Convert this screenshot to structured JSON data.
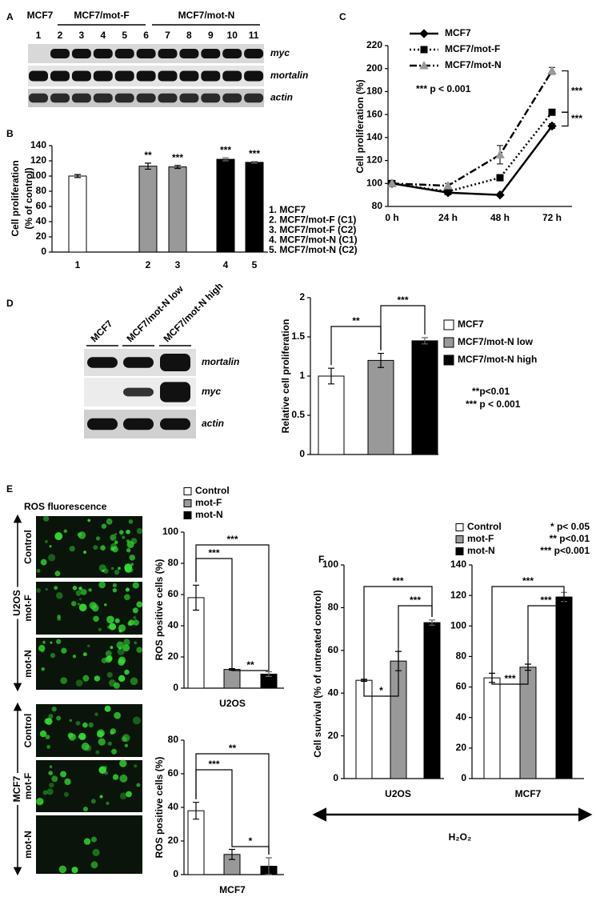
{
  "panel_labels": [
    "A",
    "B",
    "C",
    "D",
    "E",
    "F"
  ],
  "blot_A": {
    "groups": [
      "MCF7",
      "MCF7/mot-F",
      "MCF7/mot-N"
    ],
    "lanes": [
      "1",
      "2",
      "3",
      "4",
      "5",
      "6",
      "7",
      "8",
      "9",
      "10",
      "11"
    ],
    "bands": [
      "myc",
      "mortalin",
      "actin"
    ]
  },
  "blot_D": {
    "lanes": [
      "MCF7",
      "MCF7/mot-N low",
      "MCF7/mot-N high"
    ],
    "bands": [
      "mortalin",
      "myc",
      "actin"
    ]
  },
  "images_E": {
    "title": "ROS fluorescence",
    "cell_lines": [
      "U2OS",
      "MCF7"
    ],
    "conditions": [
      "Control",
      "mot-F",
      "mot-N"
    ]
  },
  "chart_data": [
    {
      "type": "bar",
      "ylabel": [
        "Cell proliferation",
        "(% of control)"
      ],
      "categories": [
        "1",
        "2",
        "3",
        "4",
        "5"
      ],
      "values": [
        100,
        113,
        112,
        122,
        118
      ],
      "errors": [
        2,
        4,
        2,
        2,
        1
      ],
      "colors": [
        "#ffffff",
        "#999999",
        "#999999",
        "#000000",
        "#000000"
      ],
      "ylim": [
        0,
        140
      ],
      "yticks": [
        0,
        20,
        40,
        60,
        80,
        100,
        120,
        140
      ],
      "significance": [
        null,
        "**",
        "***",
        "***",
        "***"
      ],
      "notes": [
        "1. MCF7",
        "2. MCF7/mot-F (C1)",
        "3. MCF7/mot-F (C2)",
        "4. MCF7/mot-N (C1)",
        "5. MCF7/mot-N (C2)"
      ]
    },
    {
      "type": "line",
      "ylabel": "Cell proliferation (%)",
      "categories": [
        "0 h",
        "24 h",
        "48 h",
        "72 h"
      ],
      "series": [
        {
          "name": "MCF7",
          "color": "#000000",
          "line_style": "solid",
          "marker": "diamond",
          "values": [
            100,
            92,
            90,
            150
          ],
          "errors": [
            1,
            1,
            1,
            2
          ]
        },
        {
          "name": "MCF7/mot-F",
          "color": "#000000",
          "line_style": "dotted",
          "marker": "square",
          "values": [
            100,
            93,
            105,
            162
          ],
          "errors": [
            1,
            1,
            2,
            2
          ]
        },
        {
          "name": "MCF7/mot-N",
          "color": "#000000",
          "marker_color": "#999999",
          "line_style": "dashdot",
          "marker": "triangle",
          "values": [
            100,
            98,
            125,
            198
          ],
          "errors": [
            1,
            2,
            8,
            3
          ]
        }
      ],
      "ylim": [
        80,
        220
      ],
      "yticks": [
        80,
        100,
        120,
        140,
        160,
        180,
        200,
        220
      ],
      "note": "*** p < 0.001",
      "significance": [
        "***",
        "***"
      ]
    },
    {
      "type": "bar",
      "ylabel": "Relative cell proliferation",
      "categories": [
        "MCF7",
        "MCF7/mot-N low",
        "MCF7/mot-N high"
      ],
      "values": [
        1,
        1.2,
        1.45
      ],
      "errors": [
        0.1,
        0.09,
        0.04
      ],
      "colors": [
        "#ffffff",
        "#999999",
        "#000000"
      ],
      "ylim": [
        0,
        2
      ],
      "yticks": [
        0,
        0.5,
        1,
        1.5,
        2
      ],
      "significance": [
        "**",
        "***"
      ],
      "notes": [
        "**p<0.01",
        "*** p < 0.001"
      ]
    },
    {
      "type": "bar",
      "ylabel": "ROS positive cells (%)",
      "xlabel": "U2OS",
      "categories": [
        "Control",
        "mot-F",
        "mot-N"
      ],
      "values": [
        58,
        12,
        9
      ],
      "errors": [
        8,
        0.5,
        1.5
      ],
      "colors": [
        "#ffffff",
        "#999999",
        "#000000"
      ],
      "ylim": [
        0,
        100
      ],
      "yticks": [
        0,
        20,
        40,
        60,
        80,
        100
      ],
      "significance": [
        "***",
        "***",
        "**"
      ]
    },
    {
      "type": "bar",
      "ylabel": "ROS positive cells (%)",
      "xlabel": "MCF7",
      "values": [
        38,
        12,
        5
      ],
      "errors": [
        5,
        3,
        5
      ],
      "colors": [
        "#ffffff",
        "#999999",
        "#000000"
      ],
      "ylim": [
        0,
        80
      ],
      "yticks": [
        0,
        20,
        40,
        60,
        80
      ],
      "significance": [
        "***",
        "**",
        "*"
      ]
    },
    {
      "type": "bar",
      "ylabel": "Cell survival (% of untreated control)",
      "xlabel": "U2OS",
      "categories": [
        "Control",
        "mot-F",
        "mot-N"
      ],
      "values": [
        46,
        55,
        73
      ],
      "errors": [
        0.5,
        4.5,
        1.2
      ],
      "colors": [
        "#ffffff",
        "#999999",
        "#000000"
      ],
      "ylim": [
        0,
        100
      ],
      "yticks": [
        0,
        20,
        40,
        60,
        80,
        100
      ],
      "significance": [
        "***",
        "*",
        "***"
      ],
      "notes": [
        "* p< 0.05",
        "** p<0.01",
        "*** p<0.001"
      ],
      "footer": "H₂O₂"
    },
    {
      "type": "bar",
      "xlabel": "MCF7",
      "values": [
        66,
        73,
        119
      ],
      "errors": [
        3,
        2,
        3
      ],
      "colors": [
        "#ffffff",
        "#999999",
        "#000000"
      ],
      "ylim": [
        0,
        140
      ],
      "yticks": [
        0,
        20,
        40,
        60,
        80,
        100,
        120,
        140
      ],
      "significance": [
        "***",
        "***",
        "***"
      ]
    }
  ]
}
